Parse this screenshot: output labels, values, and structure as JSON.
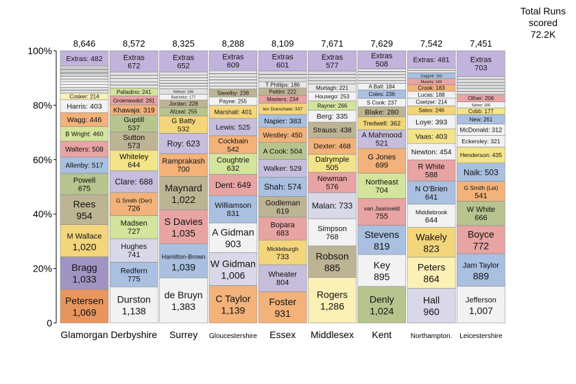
{
  "chart_data": {
    "type": "bar",
    "stacked": true,
    "normalized": true,
    "title": "Total Runs scored",
    "title_total": "72.2K",
    "y_ticks": [
      "0",
      "20%",
      "40%",
      "60%",
      "80%",
      "100%"
    ],
    "ylim": [
      0,
      100
    ],
    "categories": [
      {
        "name": "Glamorgan",
        "total": "8,646",
        "segments": [
          {
            "label": "Petersen",
            "value": 1069,
            "color": "#e8965e"
          },
          {
            "label": "Bragg",
            "value": 1033,
            "color": "#a294c2"
          },
          {
            "label": "M Wallace",
            "value": 1020,
            "color": "#f3d67c"
          },
          {
            "label": "Rees",
            "value": 954,
            "color": "#bdb494"
          },
          {
            "label": "Powell",
            "value": 675,
            "color": "#b8c48e"
          },
          {
            "label": "Allenby",
            "value": 517,
            "color": "#a9c0e0"
          },
          {
            "label": "Walters",
            "value": 508,
            "color": "#e8a3a3"
          },
          {
            "label": "B Wright",
            "value": 460,
            "color": "#d3e49c"
          },
          {
            "label": "Wagg",
            "value": 446,
            "color": "#f2b27a"
          },
          {
            "label": "Harris",
            "value": 403,
            "color": "#f2f2f2"
          },
          {
            "label": "Cosker",
            "value": 214,
            "color": "#fbf0b6"
          },
          {
            "label": "",
            "value": 186,
            "color": "#e0e0e0"
          },
          {
            "label": "",
            "value": 180,
            "color": "#f5f5f5"
          },
          {
            "label": "",
            "value": 169,
            "color": "#e8e8e8"
          },
          {
            "label": "",
            "value": 330,
            "color": "#cfcfcf"
          },
          {
            "label": "Extras",
            "value": 482,
            "color": "#c2b3dc"
          }
        ]
      },
      {
        "name": "Derbyshire",
        "total": "8,572",
        "segments": [
          {
            "label": "Durston",
            "value": 1138,
            "color": "#f2f2f2"
          },
          {
            "label": "Redfern",
            "value": 775,
            "color": "#a9c0e0"
          },
          {
            "label": "Hughes",
            "value": 741,
            "color": "#d8d8e8"
          },
          {
            "label": "Madsen",
            "value": 727,
            "color": "#d3e49c"
          },
          {
            "label": "G Smith (Der)",
            "value": 726,
            "color": "#f2b27a"
          },
          {
            "label": "Clare",
            "value": 688,
            "color": "#c6bedc"
          },
          {
            "label": "Whiteley",
            "value": 644,
            "color": "#f3e48a"
          },
          {
            "label": "Sutton",
            "value": 573,
            "color": "#bdb494"
          },
          {
            "label": "Guptill",
            "value": 537,
            "color": "#b8c48e"
          },
          {
            "label": "Khawaja",
            "value": 319,
            "color": "#f2b27a"
          },
          {
            "label": "Groenewald",
            "value": 281,
            "color": "#e8a3a3"
          },
          {
            "label": "Palladino",
            "value": 241,
            "color": "#d3e49c"
          },
          {
            "label": "",
            "value": 510,
            "color": "#e6e6e6"
          },
          {
            "label": "Extras",
            "value": 672,
            "color": "#c2b3dc"
          }
        ]
      },
      {
        "name": "Surrey",
        "total": "8,325",
        "segments": [
          {
            "label": "de Bruyn",
            "value": 1383,
            "color": "#f2f2f2"
          },
          {
            "label": "Hamilton-Brown",
            "value": 1039,
            "color": "#a9c0e0"
          },
          {
            "label": "S Davies",
            "value": 1035,
            "color": "#e8a3a3"
          },
          {
            "label": "Maynard",
            "value": 1022,
            "color": "#bdb494"
          },
          {
            "label": "Ramprakash",
            "value": 700,
            "color": "#f2b27a"
          },
          {
            "label": "Roy",
            "value": 623,
            "color": "#c6bedc"
          },
          {
            "label": "G Batty",
            "value": 532,
            "color": "#f3d67c"
          },
          {
            "label": "Afzaal",
            "value": 255,
            "color": "#b8c48e"
          },
          {
            "label": "Jordan",
            "value": 228,
            "color": "#bdb494"
          },
          {
            "label": "Batchelor",
            "value": 177,
            "color": "#f2f2f2"
          },
          {
            "label": "Nelson",
            "value": 166,
            "color": "#e0e0e0"
          },
          {
            "label": "",
            "value": 513,
            "color": "#e8e8e8"
          },
          {
            "label": "Extras",
            "value": 652,
            "color": "#c2b3dc"
          }
        ]
      },
      {
        "name": "Gloucestershire",
        "total": "8,288",
        "segments": [
          {
            "label": "C Taylor",
            "value": 1139,
            "color": "#f2b27a"
          },
          {
            "label": "W Gidman",
            "value": 1006,
            "color": "#d8d8e8"
          },
          {
            "label": "A Gidman",
            "value": 903,
            "color": "#f2f2f2"
          },
          {
            "label": "Williamson",
            "value": 831,
            "color": "#a9c0e0"
          },
          {
            "label": "Dent",
            "value": 649,
            "color": "#e8a3a3"
          },
          {
            "label": "Coughtrie",
            "value": 632,
            "color": "#d3e49c"
          },
          {
            "label": "Cockbain",
            "value": 542,
            "color": "#f2b27a"
          },
          {
            "label": "Lewis",
            "value": 525,
            "color": "#c6bedc"
          },
          {
            "label": "Marshall",
            "value": 401,
            "color": "#f3d67c"
          },
          {
            "label": "Payne",
            "value": 255,
            "color": "#f2f2f2"
          },
          {
            "label": "Saxelby",
            "value": 238,
            "color": "#bdb494"
          },
          {
            "label": "",
            "value": 558,
            "color": "#e6e6e6"
          },
          {
            "label": "Extras",
            "value": 609,
            "color": "#c2b3dc"
          }
        ]
      },
      {
        "name": "Essex",
        "total": "8,109",
        "segments": [
          {
            "label": "Foster",
            "value": 931,
            "color": "#f2b27a"
          },
          {
            "label": "Wheater",
            "value": 804,
            "color": "#c6bedc"
          },
          {
            "label": "Mickleburgh",
            "value": 733,
            "color": "#f3d67c"
          },
          {
            "label": "Bopara",
            "value": 683,
            "color": "#e8a3a3"
          },
          {
            "label": "Godleman",
            "value": 619,
            "color": "#bdb494"
          },
          {
            "label": "Shah",
            "value": 574,
            "color": "#a9c0e0"
          },
          {
            "label": "Walker",
            "value": 529,
            "color": "#c6bedc"
          },
          {
            "label": "A Cook",
            "value": 504,
            "color": "#b8c48e"
          },
          {
            "label": "Westley",
            "value": 450,
            "color": "#f2b27a"
          },
          {
            "label": "Napier",
            "value": 383,
            "color": "#a9c0e0"
          },
          {
            "label": "ten Doeschate",
            "value": 337,
            "color": "#f3d67c"
          },
          {
            "label": "Masters",
            "value": 234,
            "color": "#e8a3a3"
          },
          {
            "label": "Pettini",
            "value": 222,
            "color": "#bdb494"
          },
          {
            "label": "T Phillips",
            "value": 186,
            "color": "#e8e8e8"
          },
          {
            "label": "",
            "value": 319,
            "color": "#dcdcdc"
          },
          {
            "label": "Extras",
            "value": 601,
            "color": "#c2b3dc"
          }
        ]
      },
      {
        "name": "Middlesex",
        "total": "7,671",
        "segments": [
          {
            "label": "Rogers",
            "value": 1286,
            "color": "#fbf0b6"
          },
          {
            "label": "Robson",
            "value": 885,
            "color": "#bdb494"
          },
          {
            "label": "Simpson",
            "value": 768,
            "color": "#f2f2f2"
          },
          {
            "label": "Malan",
            "value": 733,
            "color": "#d8d8e8"
          },
          {
            "label": "Newman",
            "value": 576,
            "color": "#e8a3a3"
          },
          {
            "label": "Dalrymple",
            "value": 505,
            "color": "#f3e48a"
          },
          {
            "label": "Dexter",
            "value": 468,
            "color": "#f2b27a"
          },
          {
            "label": "Strauss",
            "value": 438,
            "color": "#bdb494"
          },
          {
            "label": "Berg",
            "value": 335,
            "color": "#f2f2f2"
          },
          {
            "label": "Rayner",
            "value": 266,
            "color": "#d3e49c"
          },
          {
            "label": "Housego",
            "value": 253,
            "color": "#f2f2f2"
          },
          {
            "label": "Murtagh",
            "value": 221,
            "color": "#e8e8e8"
          },
          {
            "label": "",
            "value": 360,
            "color": "#e0e0e0"
          },
          {
            "label": "Extras",
            "value": 577,
            "color": "#c2b3dc"
          }
        ]
      },
      {
        "name": "Kent",
        "total": "7,629",
        "segments": [
          {
            "label": "Denly",
            "value": 1024,
            "color": "#b8c48e"
          },
          {
            "label": "Key",
            "value": 895,
            "color": "#f2f2f2"
          },
          {
            "label": "Stevens",
            "value": 819,
            "color": "#a9c0e0"
          },
          {
            "label": "van Jaarsveld",
            "value": 755,
            "color": "#e8a3a3"
          },
          {
            "label": "Northeast",
            "value": 704,
            "color": "#d3e49c"
          },
          {
            "label": "G Jones",
            "value": 699,
            "color": "#f2b27a"
          },
          {
            "label": "A Mahmood",
            "value": 521,
            "color": "#c6bedc"
          },
          {
            "label": "Tredwell",
            "value": 362,
            "color": "#f3d67c"
          },
          {
            "label": "Blake",
            "value": 280,
            "color": "#bdb494"
          },
          {
            "label": "S Cook",
            "value": 237,
            "color": "#f2f2f2"
          },
          {
            "label": "Coles",
            "value": 236,
            "color": "#a9c0e0"
          },
          {
            "label": "A Ball",
            "value": 184,
            "color": "#f2f2f2"
          },
          {
            "label": "",
            "value": 405,
            "color": "#e6e6e6"
          },
          {
            "label": "Extras",
            "value": 508,
            "color": "#c2b3dc"
          }
        ]
      },
      {
        "name": "Northampton.",
        "total": "7,542",
        "segments": [
          {
            "label": "Hall",
            "value": 960,
            "color": "#d8d8e8"
          },
          {
            "label": "Peters",
            "value": 864,
            "color": "#fbf0b6"
          },
          {
            "label": "Wakely",
            "value": 823,
            "color": "#f3d67c"
          },
          {
            "label": "Middlebrook",
            "value": 644,
            "color": "#f2f2f2"
          },
          {
            "label": "N O'Brien",
            "value": 641,
            "color": "#a9c0e0"
          },
          {
            "label": "R White",
            "value": 588,
            "color": "#e8a3a3"
          },
          {
            "label": "Newton",
            "value": 454,
            "color": "#f2f2f2"
          },
          {
            "label": "Vaas",
            "value": 403,
            "color": "#f3e48a"
          },
          {
            "label": "Loye",
            "value": 393,
            "color": "#f2f2f2"
          },
          {
            "label": "Sales",
            "value": 246,
            "color": "#f3d67c"
          },
          {
            "label": "Coetzer",
            "value": 214,
            "color": "#f2f2f2"
          },
          {
            "label": "Lucas",
            "value": 188,
            "color": "#f2f2f2"
          },
          {
            "label": "Crook",
            "value": 183,
            "color": "#f2b27a"
          },
          {
            "label": "Murphy",
            "value": 169,
            "color": "#e8a3a3"
          },
          {
            "label": "Daggett",
            "value": 163,
            "color": "#a9c0e0"
          },
          {
            "label": "",
            "value": 128,
            "color": "#e6e6e6"
          },
          {
            "label": "Extras",
            "value": 481,
            "color": "#c2b3dc"
          }
        ]
      },
      {
        "name": "Leicestershire",
        "total": "7,451",
        "segments": [
          {
            "label": "Jefferson",
            "value": 1007,
            "color": "#f2f2f2"
          },
          {
            "label": "Jam Taylor",
            "value": 889,
            "color": "#a9c0e0"
          },
          {
            "label": "Boyce",
            "value": 772,
            "color": "#e8a3a3"
          },
          {
            "label": "W White",
            "value": 666,
            "color": "#b8c48e"
          },
          {
            "label": "G Smith (Lei)",
            "value": 541,
            "color": "#f2b27a"
          },
          {
            "label": "Naik",
            "value": 503,
            "color": "#a9c0e0"
          },
          {
            "label": "Henderson",
            "value": 435,
            "color": "#f3e48a"
          },
          {
            "label": "Eckersley",
            "value": 321,
            "color": "#f2f2f2"
          },
          {
            "label": "McDonald",
            "value": 312,
            "color": "#f2f2f2"
          },
          {
            "label": "New",
            "value": 261,
            "color": "#a9c0e0"
          },
          {
            "label": "Cobb",
            "value": 177,
            "color": "#f3e48a"
          },
          {
            "label": "Sykes",
            "value": 166,
            "color": "#f2f2f2"
          },
          {
            "label": "Other",
            "value": 206,
            "color": "#e8a3a3"
          },
          {
            "label": "",
            "value": 492,
            "color": "#e0e0e0"
          },
          {
            "label": "Extras",
            "value": 703,
            "color": "#c2b3dc"
          }
        ]
      }
    ]
  }
}
